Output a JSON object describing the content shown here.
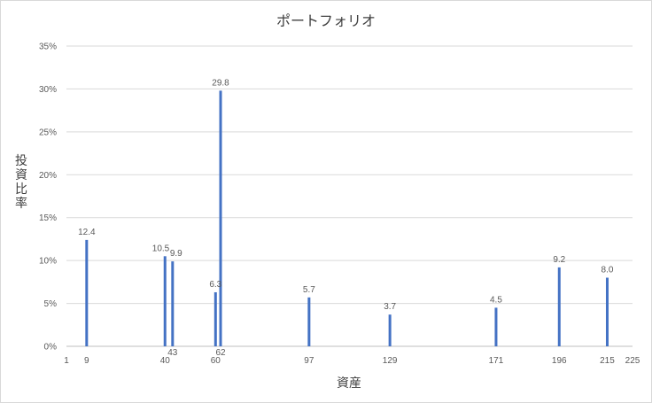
{
  "chart_data": {
    "type": "bar",
    "title": "ポートフォリオ",
    "xlabel": "資産",
    "ylabel": "投資比率",
    "xlim": [
      1,
      225
    ],
    "ylim": [
      0,
      35
    ],
    "grid": true,
    "legend": "none",
    "bar_color": "#4472c4",
    "x_tick_labels": [
      "1",
      "9",
      "40",
      "43",
      "60",
      "62",
      "97",
      "129",
      "171",
      "196",
      "215",
      "225"
    ],
    "y_tick_labels": [
      "0%",
      "5%",
      "10%",
      "15%",
      "20%",
      "25%",
      "30%",
      "35%"
    ],
    "y_ticks": [
      0,
      5,
      10,
      15,
      20,
      25,
      30,
      35
    ],
    "x": [
      9,
      40,
      43,
      60,
      62,
      97,
      129,
      171,
      196,
      215
    ],
    "values": [
      12.4,
      10.5,
      9.9,
      6.3,
      29.8,
      5.7,
      3.7,
      4.5,
      9.2,
      8.0
    ],
    "data_labels": [
      "12.4",
      "10.5",
      "9.9",
      "6.3",
      "29.8",
      "5.7",
      "3.7",
      "4.5",
      "9.2",
      "8.0"
    ]
  }
}
